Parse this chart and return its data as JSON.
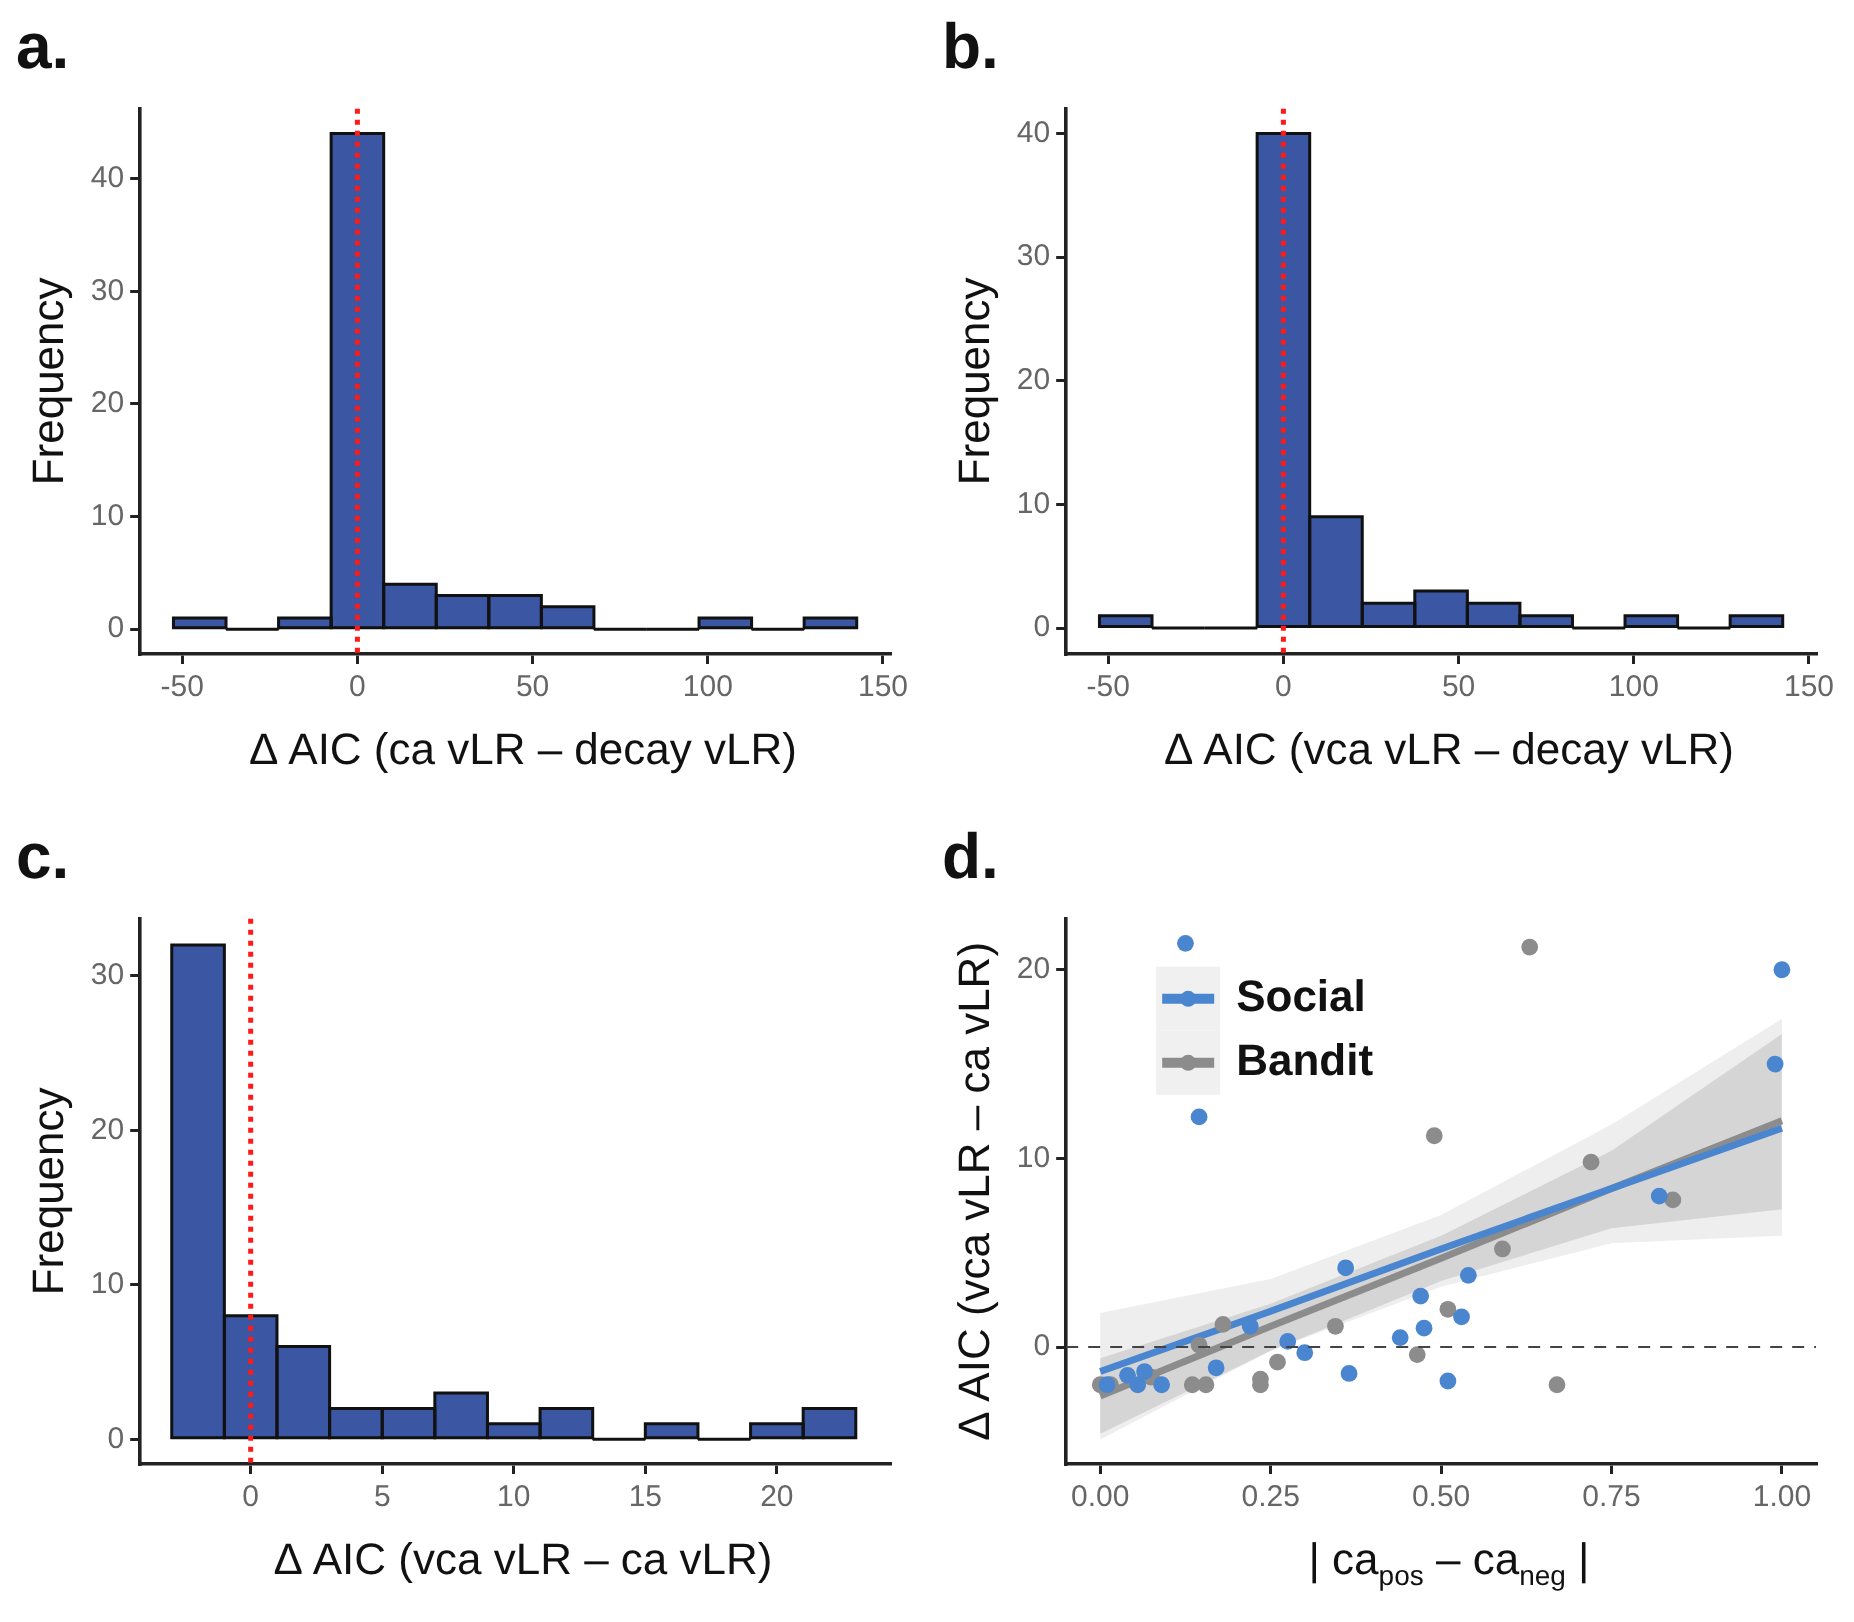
{
  "chart_data": [
    {
      "type": "histogram",
      "title": "a.",
      "xlabel": "Δ AIC (ca vLR – decay vLR)",
      "ylabel": "Frequency",
      "bins": [
        -52.5,
        -37.5,
        -22.5,
        -7.5,
        7.5,
        22.5,
        37.5,
        52.5,
        67.5,
        82.5,
        97.5,
        112.5,
        127.5,
        142.5
      ],
      "values": [
        1,
        0,
        1,
        44,
        4,
        3,
        3,
        2,
        0,
        0,
        1,
        0,
        1
      ],
      "color": "#3b56a3",
      "xlim": [
        -62,
        152
      ],
      "ylim": [
        -2.2,
        46.2
      ],
      "xticks": [
        -50,
        0,
        50,
        100,
        150
      ],
      "yticks": [
        0,
        10,
        20,
        30,
        40
      ],
      "grid": false,
      "ref_lines": [
        {
          "axis": "x",
          "value": 0,
          "color": "#ff1a1a",
          "line_style": "dotted"
        }
      ]
    },
    {
      "type": "histogram",
      "title": "b.",
      "xlabel": "Δ AIC (vca vLR – decay vLR)",
      "ylabel": "Frequency",
      "bins": [
        -52.5,
        -37.5,
        -22.5,
        -7.5,
        7.5,
        22.5,
        37.5,
        52.5,
        67.5,
        82.5,
        97.5,
        112.5,
        127.5,
        142.5
      ],
      "values": [
        1,
        0,
        0,
        40,
        9,
        2,
        3,
        2,
        1,
        0,
        1,
        0,
        1
      ],
      "color": "#3b56a3",
      "xlim": [
        -62,
        152
      ],
      "ylim": [
        -2.1,
        42
      ],
      "xticks": [
        -50,
        0,
        50,
        100,
        150
      ],
      "yticks": [
        0,
        10,
        20,
        30,
        40
      ],
      "grid": false,
      "ref_lines": [
        {
          "axis": "x",
          "value": 0,
          "color": "#ff1a1a",
          "line_style": "dotted"
        }
      ]
    },
    {
      "type": "histogram",
      "title": "c.",
      "xlabel": "Δ AIC (vca vLR – ca vLR)",
      "ylabel": "Frequency",
      "bins": [
        -3,
        -1,
        1,
        3,
        5,
        7,
        9,
        11,
        13,
        15,
        17,
        19,
        21,
        23
      ],
      "values": [
        32,
        8,
        6,
        2,
        2,
        3,
        1,
        2,
        0,
        1,
        0,
        1,
        2
      ],
      "color": "#3b56a3",
      "xlim": [
        -4.2,
        24.3
      ],
      "ylim": [
        -1.6,
        33.7
      ],
      "xticks": [
        0,
        5,
        10,
        15,
        20
      ],
      "yticks": [
        0,
        10,
        20,
        30
      ],
      "grid": false,
      "ref_lines": [
        {
          "axis": "x",
          "value": 0,
          "color": "#ff1a1a",
          "line_style": "dotted"
        }
      ]
    },
    {
      "type": "scatter",
      "title": "d.",
      "xlabel": "| ca$_{pos}$ – ca$_{neg}$ |",
      "ylabel": "Δ AIC (vca vLR – ca vLR)",
      "xlim": [
        -0.05,
        1.05
      ],
      "ylim": [
        -6.2,
        22.7
      ],
      "xticks": [
        {
          "value": 0,
          "label": "0.00"
        },
        {
          "value": 0.25,
          "label": "0.25"
        },
        {
          "value": 0.5,
          "label": "0.50"
        },
        {
          "value": 0.75,
          "label": "0.75"
        },
        {
          "value": 1,
          "label": "1.00"
        }
      ],
      "yticks": [
        0,
        10,
        20
      ],
      "grid": false,
      "legend": "top left",
      "marker": "circle",
      "ref_lines": [
        {
          "axis": "y",
          "value": 0,
          "color": "#444444",
          "line_style": "dashed"
        }
      ],
      "series": [
        {
          "type": "line",
          "marker": "none",
          "color": "#4a86cf",
          "x": [
            0,
            0.25,
            0.5,
            0.75,
            1
          ],
          "values": [
            -1.3,
            1.9,
            5.2,
            8.4,
            11.6
          ],
          "lower": [
            -4.9,
            -0.2,
            3.2,
            5.5,
            5.9
          ],
          "upper": [
            1.8,
            3.6,
            7.0,
            11.8,
            17.4
          ]
        },
        {
          "type": "line",
          "marker": "none",
          "color": "#8c8c8c",
          "x": [
            0,
            0.25,
            0.5,
            0.75,
            1
          ],
          "values": [
            -2.6,
            1.1,
            4.7,
            8.4,
            12.0
          ],
          "lower": [
            -4.6,
            -0.2,
            3.5,
            6.3,
            7.3
          ],
          "upper": [
            -0.6,
            2.3,
            5.9,
            10.4,
            16.6
          ]
        },
        {
          "type": "scatter",
          "name": "Social",
          "color": "#4a86cf",
          "x": [
            0.125,
            0.145,
            1.0,
            0.99,
            0.82,
            0.36,
            0.54,
            0.47,
            0.53,
            0.475,
            0.44,
            0.22,
            0.275,
            0.3,
            0.17,
            0.365,
            0.51,
            0.09,
            0.055,
            0.04,
            0.065,
            0.01
          ],
          "values": [
            21.4,
            12.2,
            20,
            15,
            8.0,
            4.2,
            3.8,
            2.7,
            1.6,
            1.0,
            0.5,
            1.1,
            0.3,
            -0.3,
            -1.1,
            -1.4,
            -1.8,
            -2.0,
            -2.0,
            -1.5,
            -1.3,
            -2.0
          ]
        },
        {
          "type": "scatter",
          "name": "Bandit",
          "color": "#8c8c8c",
          "x": [
            0.63,
            0.49,
            0.72,
            0.84,
            0.59,
            0.51,
            0.345,
            0.18,
            0.26,
            0.465,
            0.67,
            0.235,
            0.235,
            0.155,
            0.135,
            0.145,
            0.0,
            0.015,
            0.075
          ],
          "values": [
            21.2,
            11.2,
            9.8,
            7.8,
            5.2,
            2.0,
            1.1,
            1.2,
            -0.8,
            -0.4,
            -2.0,
            -1.7,
            -2.0,
            -2.0,
            -2.0,
            0.1,
            -2.0,
            -2.0,
            -1.6
          ]
        }
      ]
    }
  ]
}
